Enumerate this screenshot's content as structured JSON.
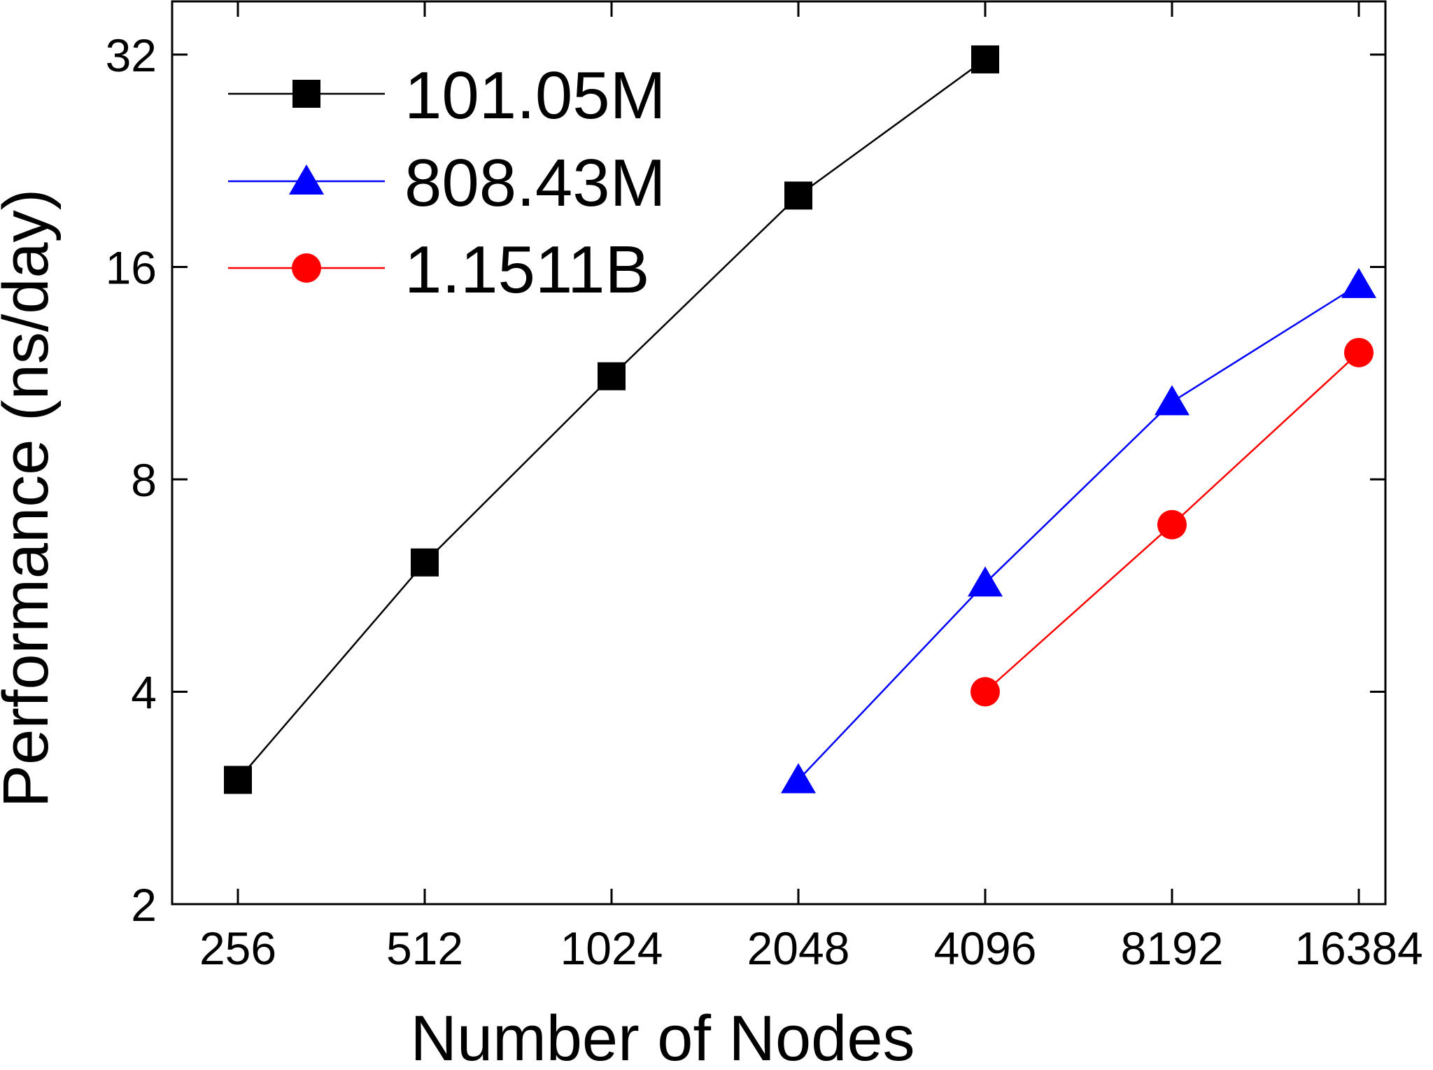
{
  "chart_data": {
    "type": "line",
    "title": "",
    "xlabel": "Number of Nodes",
    "ylabel": "Performance (ns/day)",
    "x_scale": "log2",
    "y_scale": "log2",
    "categories": [
      "256",
      "512",
      "1024",
      "2048",
      "4096",
      "8192",
      "16384"
    ],
    "x_ticks": [
      256,
      512,
      1024,
      2048,
      4096,
      8192,
      16384
    ],
    "y_ticks": [
      2,
      4,
      8,
      16,
      32
    ],
    "ylim": [
      2,
      35
    ],
    "grid": false,
    "legend_position": "top-left",
    "series": [
      {
        "name": "101.05M",
        "color": "#000000",
        "marker": "square",
        "x": [
          256,
          512,
          1024,
          2048,
          4096
        ],
        "values": [
          3.0,
          6.1,
          11.2,
          20.2,
          31.5
        ]
      },
      {
        "name": "808.43M",
        "color": "#0000ff",
        "marker": "triangle",
        "x": [
          2048,
          4096,
          8192,
          16384
        ],
        "values": [
          3.0,
          5.7,
          10.3,
          15.1
        ]
      },
      {
        "name": "1.1511B",
        "color": "#ff0000",
        "marker": "circle",
        "x": [
          4096,
          8192,
          16384
        ],
        "values": [
          4.0,
          6.9,
          12.1
        ]
      }
    ]
  }
}
